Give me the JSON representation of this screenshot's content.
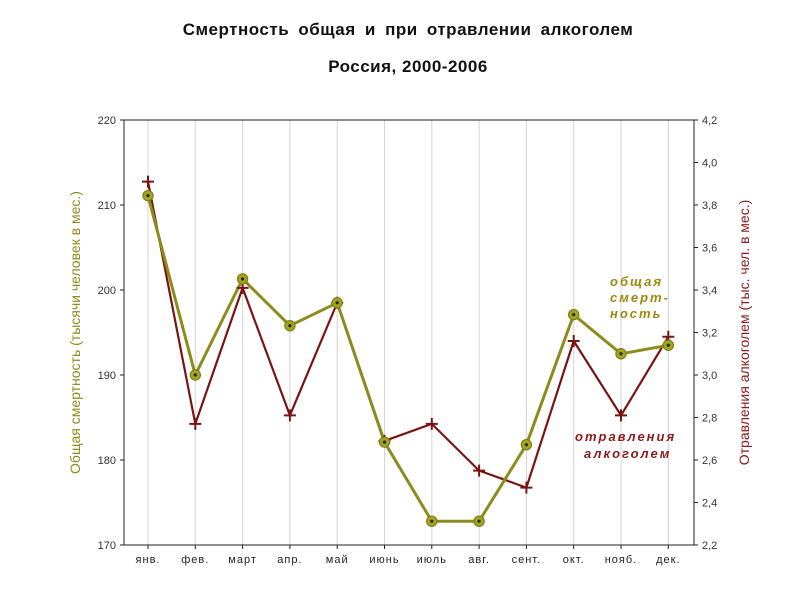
{
  "title": "Смертность  общая  и  при  отравлении  алкоголем",
  "subtitle": "Россия, 2000-2006",
  "chart_data": {
    "type": "line",
    "title": "Смертность  общая  и  при  отравлении  алкоголем",
    "subtitle": "Россия, 2000-2006",
    "categories": [
      "янв.",
      "фев.",
      "март",
      "апр.",
      "май",
      "июнь",
      "июль",
      "авг.",
      "сент.",
      "окт.",
      "нояб.",
      "дек."
    ],
    "ylabel_left": "Общая смертность (тысячи человек в мес.)",
    "ylabel_right": "Отравления алкоголем (тыс. чел. в мес.)",
    "ylim_left": [
      170,
      220
    ],
    "ylim_right": [
      2.2,
      4.2
    ],
    "yticks_left": [
      "170",
      "180",
      "190",
      "200",
      "210",
      "220"
    ],
    "yticks_right": [
      "2,2",
      "2,4",
      "2,6",
      "2,8",
      "3,0",
      "3,2",
      "3,4",
      "3,6",
      "3,8",
      "4,0",
      "4,2"
    ],
    "grid": "vertical",
    "series": [
      {
        "name": "общая смерт- ность",
        "axis": "left",
        "color": "#8c8c1c",
        "marker": "circle",
        "values": [
          211.1,
          190.0,
          201.3,
          195.8,
          198.5,
          182.1,
          172.8,
          172.8,
          181.8,
          197.1,
          192.5,
          193.5
        ]
      },
      {
        "name": "отравления алкоголем",
        "axis": "right",
        "color": "#7a1414",
        "marker": "plus",
        "values": [
          3.91,
          2.77,
          3.41,
          2.81,
          3.34,
          2.69,
          2.77,
          2.55,
          2.47,
          3.16,
          2.81,
          3.18
        ]
      }
    ],
    "annotations": [
      {
        "series": 0,
        "lines": [
          "общая",
          "смерт-",
          "ность"
        ]
      },
      {
        "series": 1,
        "lines": [
          "отравления",
          "алкоголем"
        ]
      }
    ]
  }
}
